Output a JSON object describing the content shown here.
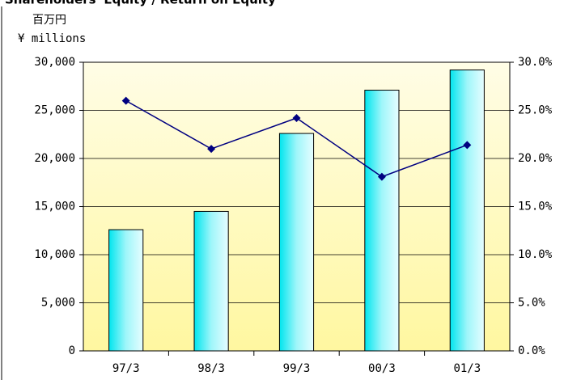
{
  "chart_data": {
    "type": "bar_line",
    "title": "Shareholders' Equity / Return on Equity",
    "y_label": [
      "百万円",
      "¥ millions"
    ],
    "categories": [
      "97/3",
      "98/3",
      "99/3",
      "00/3",
      "01/3"
    ],
    "series": [
      {
        "type": "bar",
        "color": "#00e5ee",
        "values": [
          12600,
          14500,
          22600,
          27100,
          29200
        ]
      },
      {
        "type": "line",
        "color": "#000080",
        "axis": "y2",
        "values": [
          26.0,
          21.0,
          24.2,
          18.1,
          21.4
        ]
      }
    ],
    "ylim": [
      0,
      30000
    ],
    "yticks": [
      0,
      {
        "value": 5000,
        "label": "5,000"
      },
      {
        "value": 10000,
        "label": "10,000"
      },
      {
        "value": 15000,
        "label": "15,000"
      },
      {
        "value": 20000,
        "label": "20,000"
      },
      {
        "value": 25000,
        "label": "25,000"
      },
      {
        "value": 30000,
        "label": "30,000"
      }
    ],
    "y2lim": [
      0,
      30
    ],
    "y2ticks": [
      {
        "value": 0,
        "label": "0.0%"
      },
      {
        "value": 5,
        "label": "5.0%"
      },
      {
        "value": 10,
        "label": "10.0%"
      },
      {
        "value": 15,
        "label": "15.0%"
      },
      {
        "value": 20,
        "label": "20.0%"
      },
      {
        "value": 25,
        "label": "25.0%"
      },
      {
        "value": 30,
        "label": "30.0%"
      }
    ],
    "grid": true
  }
}
